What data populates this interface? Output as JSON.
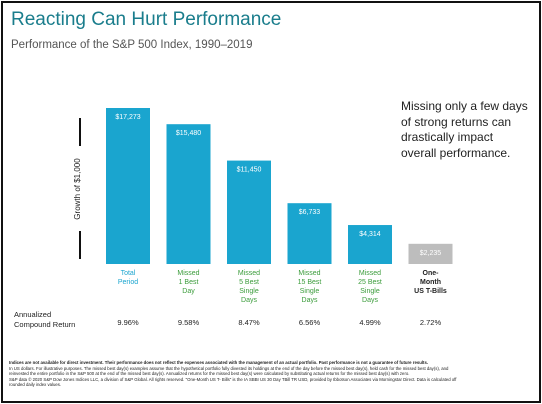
{
  "title": "Reacting Can Hurt Performance",
  "subtitle": "Performance of the S&P 500 Index, 1990–2019",
  "callout_lines": [
    "Missing only a few days",
    "of strong returns can",
    "drastically impact",
    "overall performance."
  ],
  "row_label_lines": [
    "Annualized",
    "Compound Return"
  ],
  "footnote": {
    "bold": "Indices are not available for direct investment. Their performance does not reflect the expenses associated with the management of an actual portfolio. Past performance is not a guarantee of future results.",
    "lines": [
      "In US dollars. For illustrative purposes. The missed best day(s) examples assume that the hypothetical portfolio fully divested its holdings at the end of the day before the missed best day(s), held cash for the missed best day(s), and",
      "reinvested the entire portfolio in the S&P 500 at the end of the missed best day(s). Annualized returns for the missed best day(s) were calculated by substituting actual returns for the missed best day(s) with zero.",
      "S&P data © 2020 S&P Dow Jones Indices LLC, a division of S&P Global. All rights reserved. \"One-Month US T- Bills\" is the IA SBBI US 30 Day TBill TR USD, provided by Ibbotson Associates via Morningstar Direct. Data is calculated off",
      "rounded daily index values."
    ]
  },
  "chart_data": {
    "type": "bar",
    "ylabel": "Growth of $1,000",
    "categories": [
      [
        "Total",
        "Period"
      ],
      [
        "Missed",
        "1 Best",
        "Day"
      ],
      [
        "Missed",
        "5 Best",
        "Single",
        "Days"
      ],
      [
        "Missed",
        "15 Best",
        "Single",
        "Days"
      ],
      [
        "Missed",
        "25 Best",
        "Single",
        "Days"
      ],
      [
        "One-",
        "Month",
        "US T-Bills"
      ]
    ],
    "values": [
      17273,
      15480,
      11450,
      6733,
      4314,
      2235
    ],
    "value_labels": [
      "$17,273",
      "$15,480",
      "$11,450",
      "$6,733",
      "$4,314",
      "$2,235"
    ],
    "annualized_returns": [
      "9.96%",
      "9.58%",
      "8.47%",
      "6.56%",
      "4.99%",
      "2.72%"
    ],
    "ylim": [
      0,
      17273
    ],
    "colors": {
      "bar": "#1aa5cf",
      "tbill_bar": "#bdbdbd",
      "label_first": "#1aa5cf",
      "label_missed": "#3b9c3b",
      "label_tbill": "#222222",
      "value_text": "#ffffff"
    }
  }
}
